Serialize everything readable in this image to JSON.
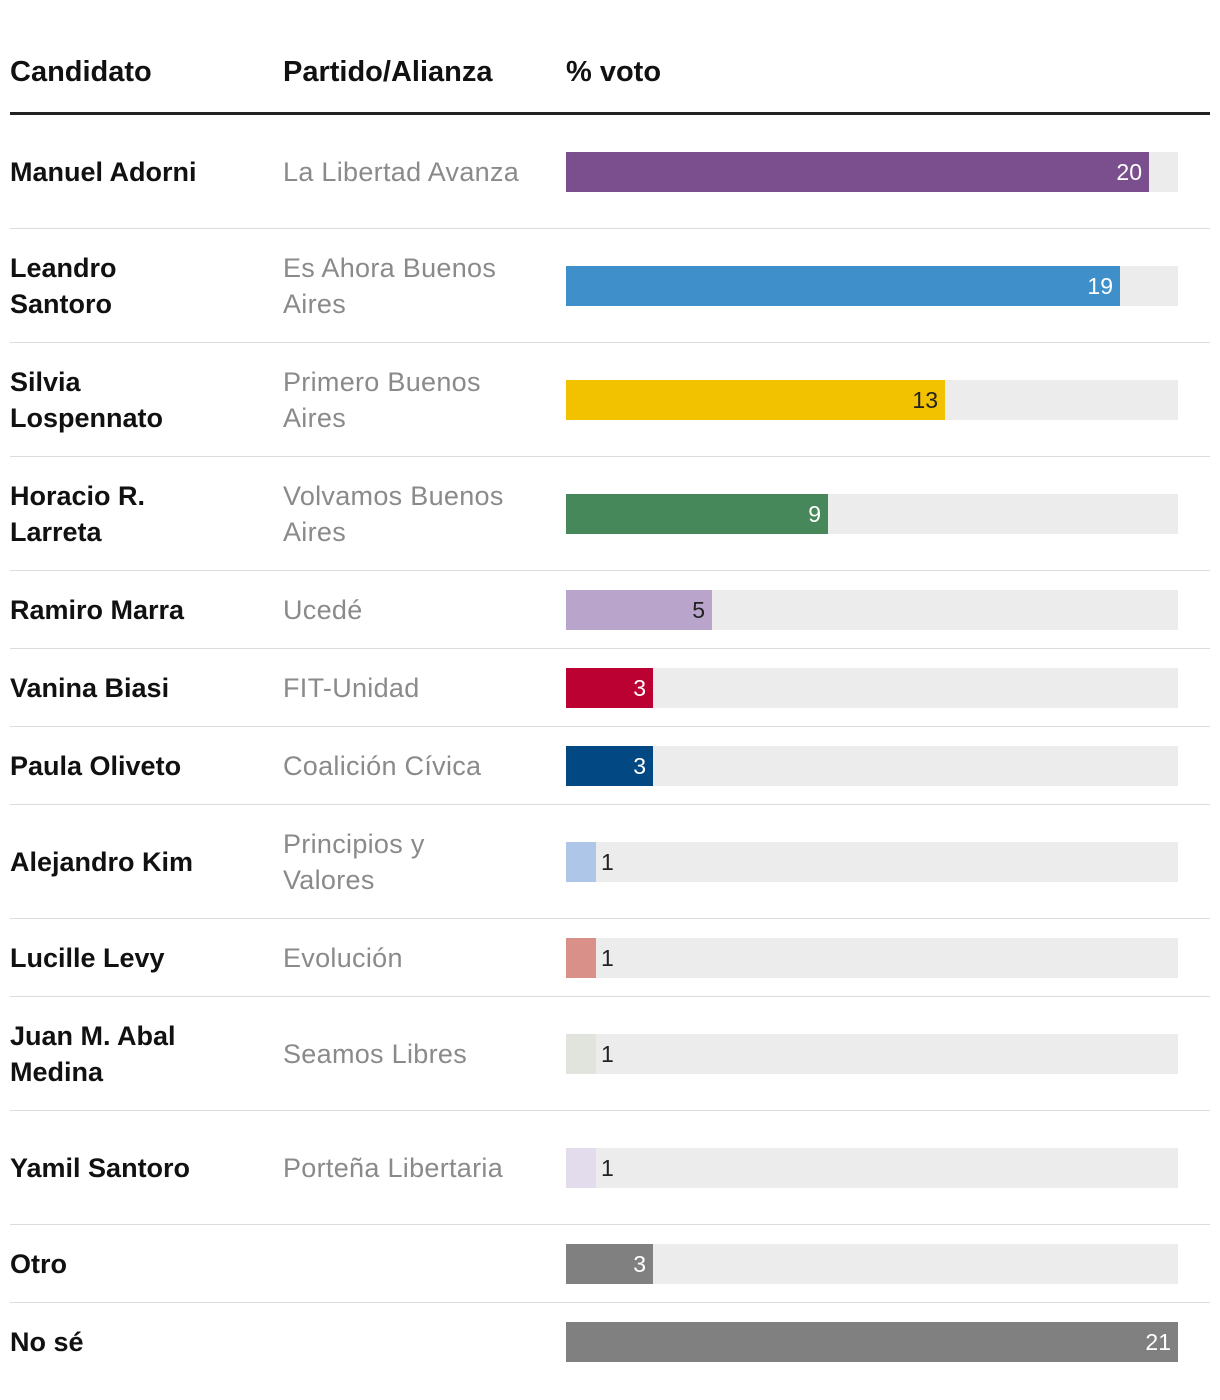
{
  "columns": {
    "candidate": "Candidato",
    "party": "Partido/Alianza",
    "vote": "% voto"
  },
  "chart_data": {
    "type": "bar",
    "orientation": "horizontal",
    "xlim": [
      0,
      21
    ],
    "categories": [
      "Manuel Adorni",
      "Leandro Santoro",
      "Silvia Lospennato",
      "Horacio R. Larreta",
      "Ramiro Marra",
      "Vanina Biasi",
      "Paula Oliveto",
      "Alejandro Kim",
      "Lucille Levy",
      "Juan M. Abal Medina",
      "Yamil Santoro",
      "Otro",
      "No sé"
    ],
    "rows": [
      {
        "candidate": "Manuel Adorni",
        "party": "La Libertad Avanza",
        "value": 20,
        "color": "#7b4f8e",
        "label_color": "#ffffff"
      },
      {
        "candidate": "Leandro Santoro",
        "party": "Es Ahora Buenos Aires",
        "value": 19,
        "color": "#3f8fcb",
        "label_color": "#ffffff"
      },
      {
        "candidate": "Silvia Lospennato",
        "party": "Primero Buenos Aires",
        "value": 13,
        "color": "#f2c100",
        "label_color": "#222222"
      },
      {
        "candidate": "Horacio R. Larreta",
        "party": "Volvamos Buenos Aires",
        "value": 9,
        "color": "#46885a",
        "label_color": "#ffffff"
      },
      {
        "candidate": "Ramiro Marra",
        "party": "Ucedé",
        "value": 5,
        "color": "#b9a4cc",
        "label_color": "#222222"
      },
      {
        "candidate": "Vanina Biasi",
        "party": "FIT-Unidad",
        "value": 3,
        "color": "#bb0032",
        "label_color": "#ffffff"
      },
      {
        "candidate": "Paula Oliveto",
        "party": "Coalición Cívica",
        "value": 3,
        "color": "#024883",
        "label_color": "#ffffff"
      },
      {
        "candidate": "Alejandro Kim",
        "party": "Principios y Valores",
        "value": 1,
        "color": "#aec7e8",
        "label_color": "#222222"
      },
      {
        "candidate": "Lucille Levy",
        "party": "Evolución",
        "value": 1,
        "color": "#d99089",
        "label_color": "#222222"
      },
      {
        "candidate": "Juan M. Abal Medina",
        "party": "Seamos Libres",
        "value": 1,
        "color": "#e0e4dd",
        "label_color": "#222222"
      },
      {
        "candidate": "Yamil Santoro",
        "party": "Porteña Libertaria",
        "value": 1,
        "color": "#e3dcec",
        "label_color": "#222222"
      },
      {
        "candidate": "Otro",
        "party": "",
        "value": 3,
        "color": "#808080",
        "label_color": "#ffffff"
      },
      {
        "candidate": "No sé",
        "party": "",
        "value": 21,
        "color": "#808080",
        "label_color": "#ffffff"
      }
    ]
  }
}
